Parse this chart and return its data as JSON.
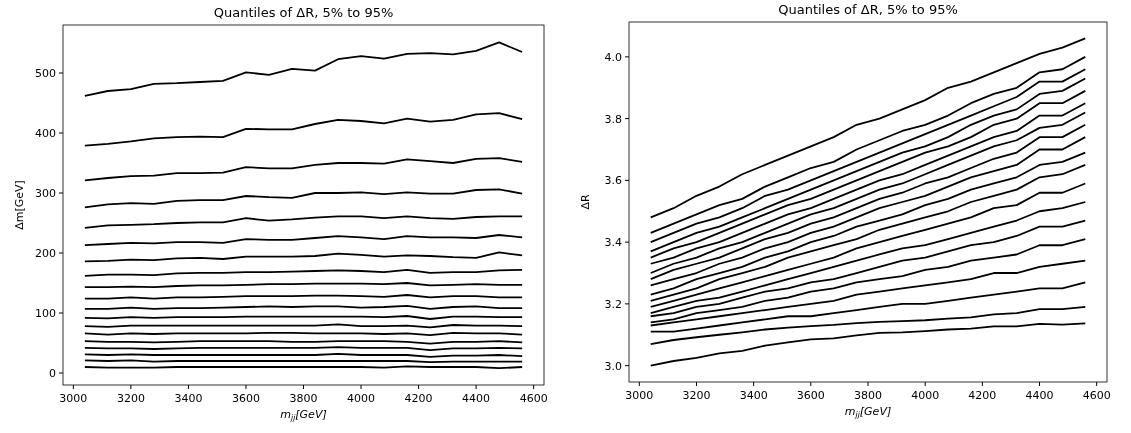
{
  "chart_data": [
    {
      "type": "line",
      "title": "Quantiles of ΔR, 5% to 95%",
      "xlabel": "m$_{jj}$[GeV]",
      "ylabel": "Δm[GeV]",
      "x": [
        3040,
        3120,
        3200,
        3280,
        3360,
        3440,
        3520,
        3600,
        3680,
        3760,
        3840,
        3920,
        4000,
        4080,
        4160,
        4240,
        4320,
        4400,
        4480,
        4560
      ],
      "xlim": [
        2964,
        4636
      ],
      "xticks": [
        3000,
        3200,
        3400,
        3600,
        3800,
        4000,
        4200,
        4400,
        4600
      ],
      "ylim": [
        -20,
        580
      ],
      "yticks": [
        0,
        100,
        200,
        300,
        400,
        500
      ],
      "grid": false,
      "marker": "none",
      "line_style": "solid",
      "series": [
        {
          "color": "#000000",
          "values": [
            10,
            9,
            9,
            9,
            10,
            10,
            10,
            10,
            10,
            10,
            10,
            10,
            10,
            9,
            11,
            10,
            10,
            10,
            8,
            10
          ]
        },
        {
          "color": "#000000",
          "values": [
            21,
            20,
            21,
            19,
            20,
            20,
            20,
            20,
            20,
            20,
            20,
            20,
            20,
            20,
            20,
            18,
            19,
            19,
            19,
            19
          ]
        },
        {
          "color": "#000000",
          "values": [
            31,
            30,
            31,
            30,
            30,
            30,
            30,
            30,
            30,
            30,
            30,
            32,
            30,
            30,
            30,
            27,
            29,
            29,
            30,
            28
          ]
        },
        {
          "color": "#000000",
          "values": [
            42,
            41,
            41,
            40,
            41,
            42,
            42,
            42,
            42,
            42,
            42,
            43,
            42,
            42,
            42,
            38,
            41,
            41,
            42,
            41
          ]
        },
        {
          "color": "#000000",
          "values": [
            53,
            52,
            52,
            51,
            52,
            53,
            53,
            53,
            53,
            52,
            52,
            53,
            53,
            53,
            52,
            49,
            52,
            52,
            53,
            51
          ]
        },
        {
          "color": "#000000",
          "values": [
            66,
            64,
            66,
            65,
            66,
            66,
            66,
            66,
            67,
            67,
            66,
            66,
            66,
            65,
            66,
            63,
            67,
            66,
            66,
            64
          ]
        },
        {
          "color": "#000000",
          "values": [
            78,
            77,
            79,
            79,
            79,
            79,
            79,
            79,
            79,
            79,
            79,
            81,
            78,
            78,
            79,
            76,
            80,
            79,
            79,
            78
          ]
        },
        {
          "color": "#000000",
          "values": [
            92,
            91,
            93,
            92,
            93,
            93,
            93,
            94,
            94,
            94,
            94,
            94,
            94,
            93,
            95,
            90,
            94,
            94,
            93,
            93
          ]
        },
        {
          "color": "#000000",
          "values": [
            107,
            107,
            109,
            107,
            108,
            108,
            109,
            110,
            111,
            110,
            111,
            111,
            109,
            110,
            112,
            107,
            110,
            111,
            108,
            108
          ]
        },
        {
          "color": "#000000",
          "values": [
            124,
            124,
            126,
            124,
            126,
            126,
            127,
            128,
            128,
            128,
            129,
            129,
            128,
            127,
            130,
            126,
            128,
            128,
            126,
            126
          ]
        },
        {
          "color": "#000000",
          "values": [
            143,
            143,
            144,
            143,
            145,
            146,
            146,
            147,
            148,
            148,
            149,
            149,
            149,
            148,
            150,
            146,
            147,
            148,
            147,
            147
          ]
        },
        {
          "color": "#000000",
          "values": [
            162,
            164,
            164,
            163,
            166,
            167,
            167,
            168,
            168,
            169,
            170,
            171,
            170,
            168,
            172,
            167,
            168,
            168,
            171,
            172
          ]
        },
        {
          "color": "#000000",
          "values": [
            186,
            187,
            189,
            188,
            191,
            192,
            190,
            194,
            194,
            194,
            195,
            199,
            197,
            194,
            196,
            195,
            193,
            192,
            201,
            196
          ]
        },
        {
          "color": "#000000",
          "values": [
            213,
            215,
            217,
            216,
            218,
            218,
            217,
            223,
            222,
            222,
            225,
            228,
            226,
            223,
            228,
            226,
            226,
            225,
            230,
            226
          ]
        },
        {
          "color": "#000000",
          "values": [
            242,
            246,
            247,
            248,
            250,
            251,
            251,
            258,
            254,
            256,
            259,
            261,
            261,
            258,
            261,
            258,
            257,
            260,
            261,
            261
          ]
        },
        {
          "color": "#000000",
          "values": [
            276,
            281,
            283,
            282,
            287,
            288,
            288,
            295,
            293,
            292,
            300,
            300,
            301,
            298,
            301,
            299,
            299,
            305,
            306,
            299
          ]
        },
        {
          "color": "#000000",
          "values": [
            321,
            325,
            328,
            329,
            333,
            333,
            334,
            343,
            341,
            341,
            347,
            350,
            350,
            349,
            356,
            353,
            350,
            357,
            358,
            352
          ]
        },
        {
          "color": "#000000",
          "values": [
            379,
            382,
            386,
            391,
            393,
            394,
            393,
            407,
            406,
            406,
            415,
            422,
            420,
            416,
            424,
            419,
            422,
            431,
            433,
            423
          ]
        },
        {
          "color": "#000000",
          "values": [
            462,
            470,
            473,
            482,
            483,
            485,
            487,
            501,
            497,
            507,
            504,
            523,
            528,
            524,
            532,
            533,
            531,
            537,
            551,
            535
          ]
        }
      ]
    },
    {
      "type": "line",
      "title": "Quantiles of ΔR, 5% to 95%",
      "xlabel": "m$_{jj}$[GeV]",
      "ylabel": "ΔR",
      "x": [
        3040,
        3120,
        3200,
        3280,
        3360,
        3440,
        3520,
        3600,
        3680,
        3760,
        3840,
        3920,
        4000,
        4080,
        4160,
        4240,
        4320,
        4400,
        4480,
        4560
      ],
      "xlim": [
        2964,
        4636
      ],
      "xticks": [
        3000,
        3200,
        3400,
        3600,
        3800,
        4000,
        4200,
        4400,
        4600
      ],
      "ylim": [
        2.947,
        4.113
      ],
      "yticks": [
        {
          "value": 3,
          "label": "3.0"
        },
        3.2,
        3.4,
        3.6,
        3.8,
        {
          "value": 4,
          "label": "4.0"
        }
      ],
      "grid": false,
      "marker": "none",
      "line_style": "solid",
      "series": [
        {
          "color": "#000000",
          "values": [
            3.0,
            3.015,
            3.025,
            3.04,
            3.048,
            3.065,
            3.075,
            3.085,
            3.088,
            3.098,
            3.106,
            3.108,
            3.112,
            3.117,
            3.12,
            3.127,
            3.127,
            3.135,
            3.133,
            3.137
          ]
        },
        {
          "color": "#000000",
          "values": [
            3.07,
            3.083,
            3.092,
            3.1,
            3.108,
            3.117,
            3.123,
            3.128,
            3.132,
            3.138,
            3.142,
            3.144,
            3.147,
            3.152,
            3.156,
            3.166,
            3.17,
            3.183,
            3.183,
            3.19
          ]
        },
        {
          "color": "#000000",
          "values": [
            3.11,
            3.11,
            3.12,
            3.13,
            3.14,
            3.15,
            3.16,
            3.16,
            3.17,
            3.18,
            3.19,
            3.2,
            3.2,
            3.21,
            3.22,
            3.23,
            3.24,
            3.25,
            3.25,
            3.27
          ]
        },
        {
          "color": "#000000",
          "values": [
            3.13,
            3.14,
            3.15,
            3.16,
            3.17,
            3.18,
            3.19,
            3.2,
            3.21,
            3.23,
            3.24,
            3.25,
            3.26,
            3.27,
            3.28,
            3.3,
            3.3,
            3.32,
            3.33,
            3.34
          ]
        },
        {
          "color": "#000000",
          "values": [
            3.14,
            3.15,
            3.17,
            3.18,
            3.19,
            3.21,
            3.22,
            3.24,
            3.25,
            3.27,
            3.28,
            3.29,
            3.31,
            3.32,
            3.34,
            3.35,
            3.36,
            3.39,
            3.39,
            3.41
          ]
        },
        {
          "color": "#000000",
          "values": [
            3.16,
            3.17,
            3.19,
            3.2,
            3.22,
            3.24,
            3.25,
            3.27,
            3.28,
            3.3,
            3.32,
            3.34,
            3.35,
            3.37,
            3.39,
            3.4,
            3.42,
            3.45,
            3.45,
            3.47
          ]
        },
        {
          "color": "#000000",
          "values": [
            3.17,
            3.19,
            3.21,
            3.22,
            3.24,
            3.26,
            3.28,
            3.3,
            3.32,
            3.34,
            3.36,
            3.38,
            3.39,
            3.41,
            3.43,
            3.45,
            3.47,
            3.5,
            3.51,
            3.53
          ]
        },
        {
          "color": "#000000",
          "values": [
            3.19,
            3.21,
            3.23,
            3.25,
            3.27,
            3.29,
            3.31,
            3.33,
            3.35,
            3.38,
            3.4,
            3.42,
            3.44,
            3.46,
            3.48,
            3.51,
            3.52,
            3.56,
            3.56,
            3.59
          ]
        },
        {
          "color": "#000000",
          "values": [
            3.21,
            3.23,
            3.25,
            3.28,
            3.3,
            3.32,
            3.35,
            3.37,
            3.39,
            3.41,
            3.44,
            3.46,
            3.48,
            3.5,
            3.53,
            3.55,
            3.57,
            3.61,
            3.62,
            3.65
          ]
        },
        {
          "color": "#000000",
          "values": [
            3.23,
            3.25,
            3.28,
            3.3,
            3.32,
            3.35,
            3.37,
            3.4,
            3.42,
            3.45,
            3.47,
            3.49,
            3.52,
            3.54,
            3.57,
            3.59,
            3.61,
            3.65,
            3.66,
            3.69
          ]
        },
        {
          "color": "#000000",
          "values": [
            3.26,
            3.28,
            3.3,
            3.33,
            3.35,
            3.38,
            3.4,
            3.43,
            3.45,
            3.48,
            3.51,
            3.53,
            3.55,
            3.58,
            3.61,
            3.63,
            3.65,
            3.7,
            3.7,
            3.74
          ]
        },
        {
          "color": "#000000",
          "values": [
            3.28,
            3.31,
            3.33,
            3.35,
            3.38,
            3.41,
            3.43,
            3.46,
            3.48,
            3.51,
            3.54,
            3.56,
            3.59,
            3.61,
            3.64,
            3.67,
            3.69,
            3.74,
            3.74,
            3.78
          ]
        },
        {
          "color": "#000000",
          "values": [
            3.3,
            3.33,
            3.35,
            3.38,
            3.4,
            3.43,
            3.46,
            3.49,
            3.51,
            3.54,
            3.57,
            3.59,
            3.62,
            3.65,
            3.68,
            3.71,
            3.73,
            3.77,
            3.78,
            3.82
          ]
        },
        {
          "color": "#000000",
          "values": [
            3.33,
            3.35,
            3.38,
            3.4,
            3.43,
            3.46,
            3.49,
            3.51,
            3.54,
            3.57,
            3.6,
            3.62,
            3.65,
            3.68,
            3.71,
            3.74,
            3.76,
            3.81,
            3.81,
            3.85
          ]
        },
        {
          "color": "#000000",
          "values": [
            3.35,
            3.38,
            3.4,
            3.43,
            3.46,
            3.49,
            3.52,
            3.54,
            3.57,
            3.6,
            3.63,
            3.66,
            3.69,
            3.71,
            3.74,
            3.78,
            3.8,
            3.85,
            3.85,
            3.89
          ]
        },
        {
          "color": "#000000",
          "values": [
            3.37,
            3.4,
            3.43,
            3.45,
            3.48,
            3.51,
            3.54,
            3.57,
            3.6,
            3.63,
            3.66,
            3.69,
            3.71,
            3.74,
            3.78,
            3.81,
            3.83,
            3.88,
            3.89,
            3.93
          ]
        },
        {
          "color": "#000000",
          "values": [
            3.4,
            3.43,
            3.46,
            3.48,
            3.51,
            3.55,
            3.57,
            3.6,
            3.63,
            3.66,
            3.69,
            3.72,
            3.75,
            3.78,
            3.81,
            3.84,
            3.87,
            3.92,
            3.92,
            3.96
          ]
        },
        {
          "color": "#000000",
          "values": [
            3.43,
            3.46,
            3.49,
            3.52,
            3.54,
            3.58,
            3.61,
            3.64,
            3.66,
            3.7,
            3.73,
            3.76,
            3.78,
            3.81,
            3.85,
            3.88,
            3.9,
            3.95,
            3.96,
            4.0
          ]
        },
        {
          "color": "#000000",
          "values": [
            3.48,
            3.51,
            3.55,
            3.58,
            3.62,
            3.65,
            3.68,
            3.71,
            3.74,
            3.78,
            3.8,
            3.83,
            3.86,
            3.9,
            3.92,
            3.95,
            3.98,
            4.01,
            4.03,
            4.06
          ]
        }
      ]
    }
  ]
}
